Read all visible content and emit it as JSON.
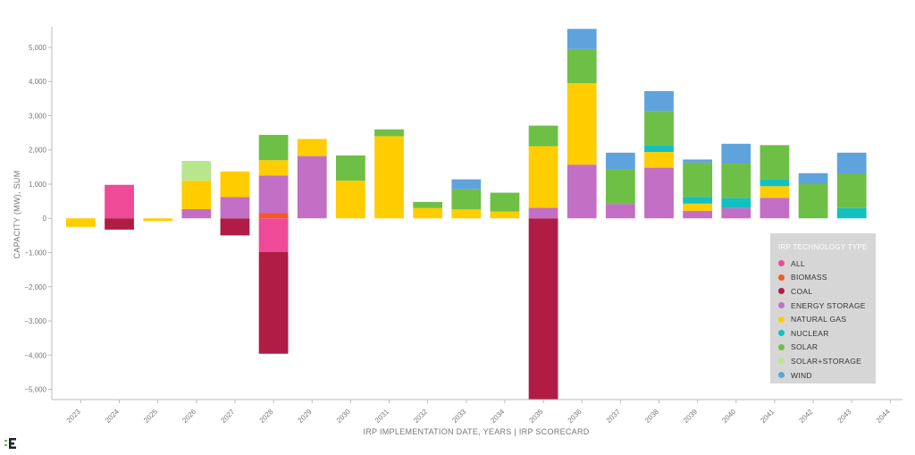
{
  "chart_data": {
    "type": "bar",
    "stacked": true,
    "title": "",
    "xlabel": "IRP IMPLEMENTATION DATE, YEARS | IRP SCORECARD",
    "ylabel": "CAPACITY (MW), SUM",
    "ylim": [
      -5300,
      5600
    ],
    "yticks": [
      5000,
      4000,
      3000,
      2000,
      1000,
      0,
      -1000,
      -2000,
      -3000,
      -4000,
      -5000
    ],
    "ytick_labels": [
      "5,000",
      "4,000",
      "3,000",
      "2,000",
      "1,000",
      "0",
      "−1,000",
      "−2,000",
      "−3,000",
      "−4,000",
      "−5,000"
    ],
    "categories": [
      "2023",
      "2024",
      "2025",
      "2026",
      "2027",
      "2028",
      "2029",
      "2030",
      "2031",
      "2032",
      "2033",
      "2034",
      "2035",
      "2036",
      "2037",
      "2038",
      "2039",
      "2040",
      "2041",
      "2042",
      "2043",
      "2044"
    ],
    "legend_title": "IRP TECHNOLOGY TYPE",
    "legend_position": "bottom-right",
    "series": [
      {
        "name": "ALL",
        "color": "#ee4a97",
        "values": [
          0,
          980,
          0,
          0,
          0,
          -980,
          0,
          0,
          0,
          0,
          0,
          0,
          0,
          0,
          0,
          0,
          0,
          0,
          0,
          0,
          0,
          0
        ]
      },
      {
        "name": "BIOMASS",
        "color": "#f5582a",
        "values": [
          0,
          0,
          0,
          0,
          0,
          150,
          0,
          0,
          0,
          0,
          0,
          0,
          0,
          0,
          0,
          0,
          0,
          0,
          0,
          0,
          0,
          0
        ]
      },
      {
        "name": "COAL",
        "color": "#b01c46",
        "values": [
          0,
          -330,
          0,
          0,
          -500,
          -2980,
          0,
          0,
          0,
          0,
          0,
          0,
          -5300,
          0,
          0,
          0,
          0,
          0,
          0,
          0,
          0,
          0
        ]
      },
      {
        "name": "ENERGY STORAGE",
        "color": "#c36fc5",
        "values": [
          0,
          0,
          0,
          270,
          620,
          1100,
          1820,
          0,
          0,
          0,
          0,
          0,
          310,
          1570,
          420,
          1480,
          220,
          300,
          600,
          0,
          0,
          0
        ]
      },
      {
        "name": "NATURAL GAS",
        "color": "#ffcd00",
        "values": [
          -250,
          0,
          -80,
          830,
          750,
          450,
          500,
          1100,
          2400,
          300,
          260,
          200,
          1800,
          2380,
          0,
          460,
          210,
          0,
          340,
          0,
          0,
          0
        ]
      },
      {
        "name": "NUCLEAR",
        "color": "#14bfbf",
        "values": [
          0,
          0,
          0,
          0,
          0,
          0,
          0,
          0,
          0,
          0,
          0,
          0,
          0,
          0,
          0,
          200,
          200,
          300,
          200,
          0,
          300,
          0
        ]
      },
      {
        "name": "SOLAR",
        "color": "#6ebf46",
        "values": [
          0,
          0,
          0,
          0,
          0,
          740,
          0,
          740,
          200,
          180,
          590,
          550,
          600,
          1000,
          1000,
          1000,
          1000,
          1000,
          1000,
          1000,
          1000,
          0
        ]
      },
      {
        "name": "SOLAR+STORAGE",
        "color": "#b7e68e",
        "values": [
          0,
          0,
          0,
          580,
          0,
          0,
          0,
          0,
          0,
          0,
          0,
          0,
          0,
          0,
          0,
          0,
          0,
          0,
          0,
          0,
          0,
          0
        ]
      },
      {
        "name": "WIND",
        "color": "#5fa3dc",
        "values": [
          0,
          0,
          0,
          0,
          0,
          0,
          0,
          0,
          0,
          0,
          290,
          0,
          0,
          590,
          500,
          580,
          90,
          580,
          0,
          320,
          620,
          0
        ]
      }
    ]
  }
}
